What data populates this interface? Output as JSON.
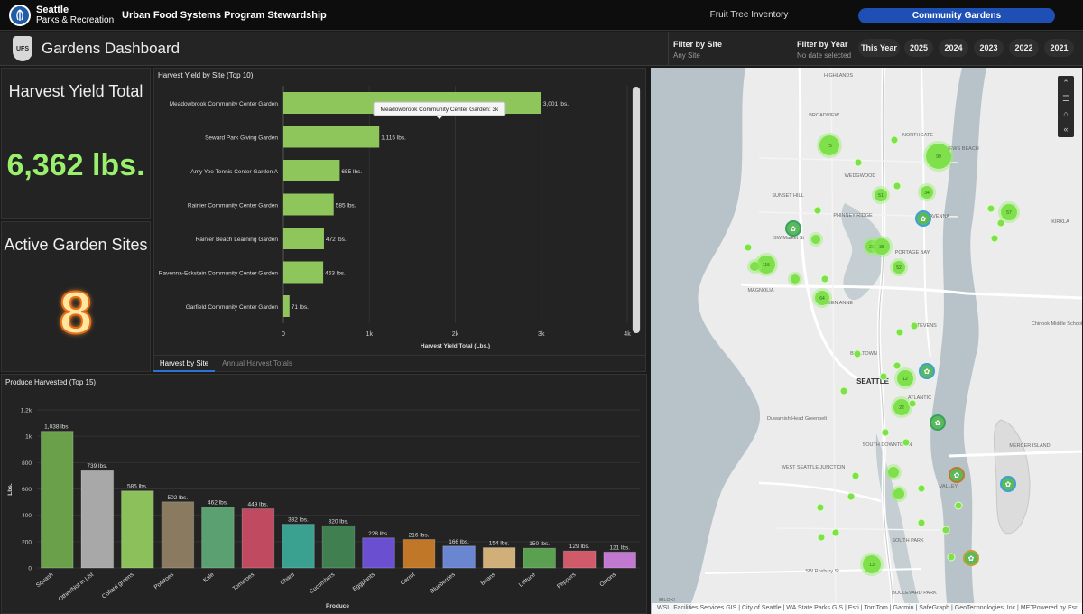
{
  "topbar": {
    "logo_line1": "Seattle",
    "logo_line2": "Parks & Recreation",
    "app_title": "Urban Food Systems Program Stewardship",
    "nav_fruit": "Fruit Tree Inventory",
    "nav_community": "Community Gardens"
  },
  "header": {
    "badge": "UFS",
    "title": "Gardens Dashboard",
    "filter_site_label": "Filter by Site",
    "filter_site_value": "Any Site",
    "filter_year_label": "Filter by Year",
    "filter_year_value": "No date selected",
    "years": [
      "This Year",
      "2025",
      "2024",
      "2023",
      "2022",
      "2021"
    ]
  },
  "kpis": {
    "harvest_label": "Harvest Yield Total",
    "harvest_value": "6,362 lbs.",
    "sites_label": "Active Garden Sites",
    "sites_value": "8"
  },
  "tabs": {
    "active": "Harvest by Site",
    "inactive": "Annual Harvest Totals"
  },
  "chart_data": [
    {
      "type": "bar",
      "orientation": "horizontal",
      "title": "Harvest Yield by Site (Top 10)",
      "xlabel": "Harvest Yield Total (Lbs.)",
      "ylabel": "",
      "xlim": [
        0,
        4000
      ],
      "ticks": [
        "0",
        "1k",
        "2k",
        "3k",
        "4k"
      ],
      "tooltip": "Meadowbrook Community Center Garden: 3k",
      "color": "#8fc65b",
      "categories": [
        "Meadowbrook Community Center Garden",
        "Seward Park Giving Garden",
        "Amy Yee Tennis Center Garden A",
        "Rainier Community Center Garden",
        "Rainier Beach Learning Garden",
        "Ravenna-Eckstein Community Center Garden",
        "Garfield Community Center Garden"
      ],
      "values": [
        3001,
        1115,
        655,
        585,
        472,
        463,
        71
      ],
      "labels": [
        "3,001 lbs.",
        "1,115 lbs.",
        "655 lbs.",
        "585 lbs.",
        "472 lbs.",
        "463 lbs.",
        "71 lbs."
      ]
    },
    {
      "type": "bar",
      "title": "Produce Harvested (Top 15)",
      "xlabel": "Produce",
      "ylabel": "Lbs.",
      "ylim": [
        0,
        1200
      ],
      "ticks": [
        "0",
        "200",
        "400",
        "600",
        "800",
        "1k",
        "1.2k"
      ],
      "categories": [
        "Squash",
        "Other/Not in List",
        "Collard greens",
        "Potatoes",
        "Kale",
        "Tomatoes",
        "Chard",
        "Cucumbers",
        "Eggplants",
        "Carrot",
        "Blueberries",
        "Beans",
        "Lettuce",
        "Peppers",
        "Onions"
      ],
      "values": [
        1038,
        739,
        585,
        502,
        462,
        449,
        332,
        320,
        228,
        216,
        166,
        154,
        150,
        129,
        121
      ],
      "labels": [
        "1,038 lbs.",
        "739 lbs.",
        "585 lbs.",
        "502 lbs.",
        "462 lbs.",
        "449 lbs.",
        "332 lbs.",
        "320 lbs.",
        "228 lbs.",
        "216 lbs.",
        "166 lbs.",
        "154 lbs.",
        "150 lbs.",
        "129 lbs.",
        "121 lbs."
      ],
      "colors": [
        "#6aa04a",
        "#a8a8a8",
        "#8cc05a",
        "#8a7a60",
        "#5aa070",
        "#c04a60",
        "#3aa090",
        "#3f7f50",
        "#6a4fd0",
        "#c07828",
        "#6a86d0",
        "#d0b078",
        "#5aa050",
        "#d05a6a",
        "#c078d0"
      ]
    }
  ],
  "map": {
    "labels": [
      "HIGHLANDS",
      "BROADVIEW",
      "NORTHGATE",
      "MATTHEWS BEACH",
      "WEDGWOOD",
      "SUNSET HILL",
      "PHINNEY RIDGE",
      "RAVENNA",
      "SW Market St",
      "PORTAGE BAY",
      "MAGNOLIA",
      "QUEEN ANNE",
      "STEVENS",
      "BELLTOWN",
      "SEATTLE",
      "ATLANTIC",
      "Duwamish Head Greenbelt",
      "SOUTH DOWNTOWN",
      "MERCER ISLAND",
      "WEST SEATTLE JUNCTION",
      "SOUTH PARK",
      "SW Roxbury St",
      "BOULEVARD PARK",
      "BILOXI",
      "KIRKLA",
      "Chinook Middle School",
      "VALLEY"
    ],
    "attribution": "WSU Facilities Services GIS | City of Seattle | WA State Parks GIS | Esri | TomTom | Garmin | SafeGraph | GeoTechnologies, Inc | MET...",
    "powered": "Powered by Esri",
    "cluster_labels": [
      "75",
      "99",
      "34",
      "51",
      "29",
      "64",
      "115",
      "28",
      "41",
      "38",
      "52",
      "57",
      "64",
      "13",
      "13",
      "23",
      "22",
      "12"
    ]
  },
  "colors": {
    "accent": "#1d4fb5",
    "kpi_green": "#9af06c",
    "bar_green": "#8fc65b"
  },
  "icons": {
    "logo": "seattle-parks-logo",
    "tools": [
      "expand-icon",
      "list-icon",
      "home-icon",
      "collapse-icon"
    ]
  }
}
